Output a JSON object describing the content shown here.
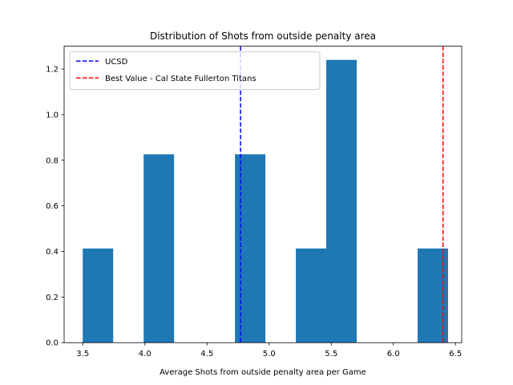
{
  "chart_data": {
    "type": "bar",
    "title": "Distribution of Shots from outside penalty area",
    "xlabel": "Average Shots from outside penalty area per Game",
    "ylabel": "",
    "xlim": [
      3.35,
      6.55
    ],
    "ylim": [
      0,
      1.3
    ],
    "xticks": [
      3.5,
      4.0,
      4.5,
      5.0,
      5.5,
      6.0,
      6.5
    ],
    "xtick_labels": [
      "3.5",
      "4.0",
      "4.5",
      "5.0",
      "5.5",
      "6.0",
      "6.5"
    ],
    "yticks": [
      0.0,
      0.2,
      0.4,
      0.6,
      0.8,
      1.0,
      1.2
    ],
    "ytick_labels": [
      "0.0",
      "0.2",
      "0.4",
      "0.6",
      "0.8",
      "1.0",
      "1.2"
    ],
    "grid": false,
    "bar_color": "#1f77b4",
    "bins": [
      {
        "x0": 3.5,
        "x1": 3.745,
        "value": 0.413
      },
      {
        "x0": 3.745,
        "x1": 3.99,
        "value": 0.0
      },
      {
        "x0": 3.99,
        "x1": 4.235,
        "value": 0.826
      },
      {
        "x0": 4.235,
        "x1": 4.48,
        "value": 0.0
      },
      {
        "x0": 4.48,
        "x1": 4.725,
        "value": 0.0
      },
      {
        "x0": 4.725,
        "x1": 4.97,
        "value": 0.826
      },
      {
        "x0": 4.97,
        "x1": 5.215,
        "value": 0.0
      },
      {
        "x0": 5.215,
        "x1": 5.46,
        "value": 0.413
      },
      {
        "x0": 5.46,
        "x1": 5.705,
        "value": 1.24
      },
      {
        "x0": 5.705,
        "x1": 5.95,
        "value": 0.0
      },
      {
        "x0": 5.95,
        "x1": 6.195,
        "value": 0.0
      },
      {
        "x0": 6.195,
        "x1": 6.44,
        "value": 0.413
      }
    ],
    "reference_lines": [
      {
        "name": "UCSD",
        "x": 4.77,
        "color": "#0000ff"
      },
      {
        "name": "Best Value - Cal State Fullerton Titans",
        "x": 6.4,
        "color": "#ff0000"
      }
    ],
    "legend_position": "top-left"
  }
}
